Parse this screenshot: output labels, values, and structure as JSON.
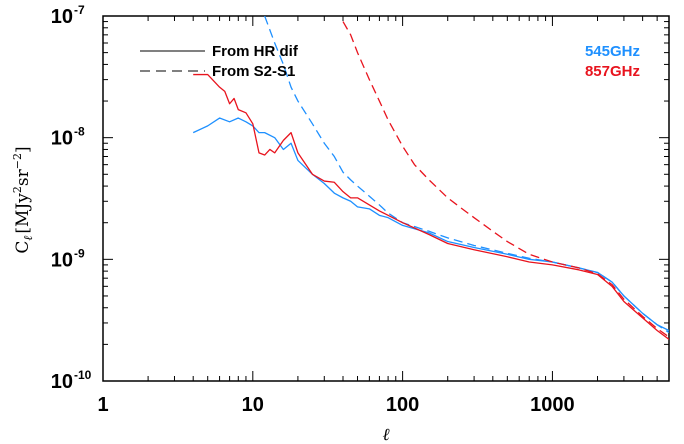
{
  "chart_data": {
    "type": "line",
    "xlabel": "ℓ",
    "ylabel_base": "C",
    "ylabel_sub": "ℓ",
    "ylabel_unit_prefix": "[MJy",
    "ylabel_unit_exp1": "2",
    "ylabel_unit_mid": "sr",
    "ylabel_unit_exp2": "−2",
    "ylabel_unit_suffix": "]",
    "x_scale": "log",
    "y_scale": "log",
    "xlim": [
      1,
      6000
    ],
    "ylim": [
      1e-10,
      1e-07
    ],
    "x_ticks": [
      {
        "value": 1,
        "label": "1"
      },
      {
        "value": 10,
        "label": "10"
      },
      {
        "value": 100,
        "label": "100"
      },
      {
        "value": 1000,
        "label": "1000"
      }
    ],
    "y_ticks": [
      {
        "value": 1e-10,
        "mantissa": "10",
        "exponent": "-10"
      },
      {
        "value": 1e-09,
        "mantissa": "10",
        "exponent": "-9"
      },
      {
        "value": 1e-08,
        "mantissa": "10",
        "exponent": "-8"
      },
      {
        "value": 1e-07,
        "mantissa": "10",
        "exponent": "-7"
      }
    ],
    "legend": {
      "placement": "top-left",
      "entries": [
        {
          "label": "From HR dif",
          "style": "solid"
        },
        {
          "label": "From S2-S1",
          "style": "dashed"
        }
      ]
    },
    "frequency_labels": [
      {
        "label": "545GHz",
        "color": "#1e90ff"
      },
      {
        "label": "857GHz",
        "color": "#e8141e"
      }
    ],
    "series": [
      {
        "frequency": "545GHz",
        "method": "From HR dif",
        "color": "#1e90ff",
        "style": "solid",
        "x": [
          4,
          5,
          6,
          7,
          8,
          9,
          10,
          11,
          12,
          14,
          16,
          18,
          20,
          25,
          30,
          35,
          40,
          45,
          50,
          60,
          70,
          80,
          100,
          150,
          200,
          300,
          500,
          700,
          1000,
          1500,
          2000,
          2500,
          3000,
          4000,
          5000,
          6000
        ],
        "y": [
          1.1e-08,
          1.25e-08,
          1.45e-08,
          1.35e-08,
          1.45e-08,
          1.35e-08,
          1.25e-08,
          1.1e-08,
          1.1e-08,
          1e-08,
          8e-09,
          9e-09,
          6.5e-09,
          5e-09,
          4.2e-09,
          3.5e-09,
          3.2e-09,
          3e-09,
          2.7e-09,
          2.6e-09,
          2.3e-09,
          2.2e-09,
          1.9e-09,
          1.65e-09,
          1.4e-09,
          1.25e-09,
          1.1e-09,
          1e-09,
          9.5e-10,
          8.5e-10,
          7.8e-10,
          6.5e-10,
          5e-10,
          3.6e-10,
          2.9e-10,
          2.6e-10
        ]
      },
      {
        "frequency": "545GHz",
        "method": "From S2-S1",
        "color": "#1e90ff",
        "style": "dashed",
        "x": [
          12,
          14,
          16,
          18,
          20,
          25,
          30,
          35,
          40,
          45,
          50,
          60,
          70,
          80,
          100,
          150,
          200,
          300,
          500,
          700,
          1000,
          1500,
          2000,
          2500,
          3000,
          4000,
          5000,
          6000
        ],
        "y": [
          1e-07,
          6e-08,
          4e-08,
          2.6e-08,
          2e-08,
          1.3e-08,
          9e-09,
          7e-09,
          5.2e-09,
          4.5e-09,
          4e-09,
          3.3e-09,
          2.8e-09,
          2.4e-09,
          2e-09,
          1.7e-09,
          1.5e-09,
          1.3e-09,
          1.12e-09,
          1.02e-09,
          9.5e-10,
          8.5e-10,
          7.8e-10,
          6.5e-10,
          5e-10,
          3.6e-10,
          2.9e-10,
          2.5e-10
        ]
      },
      {
        "frequency": "857GHz",
        "method": "From HR dif",
        "color": "#e8141e",
        "style": "solid",
        "x": [
          4,
          5,
          6,
          6.5,
          7,
          7.5,
          8,
          9,
          10,
          11,
          12,
          13,
          14,
          16,
          18,
          20,
          25,
          30,
          35,
          40,
          45,
          50,
          60,
          70,
          80,
          100,
          150,
          200,
          300,
          500,
          700,
          1000,
          1500,
          2000,
          2500,
          3000,
          4000,
          5000,
          6000
        ],
        "y": [
          3.3e-08,
          3.3e-08,
          2.6e-08,
          2.4e-08,
          1.9e-08,
          2.1e-08,
          1.7e-08,
          1.6e-08,
          1.3e-08,
          7.5e-09,
          7.2e-09,
          8e-09,
          7.5e-09,
          9.5e-09,
          1.1e-08,
          7.5e-09,
          5e-09,
          4.4e-09,
          4.3e-09,
          3.6e-09,
          3.2e-09,
          3.2e-09,
          2.8e-09,
          2.5e-09,
          2.3e-09,
          2e-09,
          1.6e-09,
          1.35e-09,
          1.2e-09,
          1.05e-09,
          9.5e-10,
          9e-10,
          8.2e-10,
          7.5e-10,
          6e-10,
          4.5e-10,
          3.3e-10,
          2.6e-10,
          2.2e-10
        ]
      },
      {
        "frequency": "857GHz",
        "method": "From S2-S1",
        "color": "#e8141e",
        "style": "dashed",
        "x": [
          40,
          45,
          50,
          60,
          70,
          80,
          100,
          120,
          150,
          200,
          250,
          300,
          400,
          500,
          700,
          1000,
          1500,
          2000,
          2500,
          3000,
          4000,
          5000,
          6000
        ],
        "y": [
          9e-08,
          7e-08,
          5e-08,
          3e-08,
          2e-08,
          1.4e-08,
          8.5e-09,
          6e-09,
          4.5e-09,
          3.2e-09,
          2.6e-09,
          2.2e-09,
          1.7e-09,
          1.4e-09,
          1.1e-09,
          9.5e-10,
          8.5e-10,
          7.6e-10,
          6.2e-10,
          4.7e-10,
          3.4e-10,
          2.7e-10,
          2.3e-10
        ]
      }
    ]
  }
}
